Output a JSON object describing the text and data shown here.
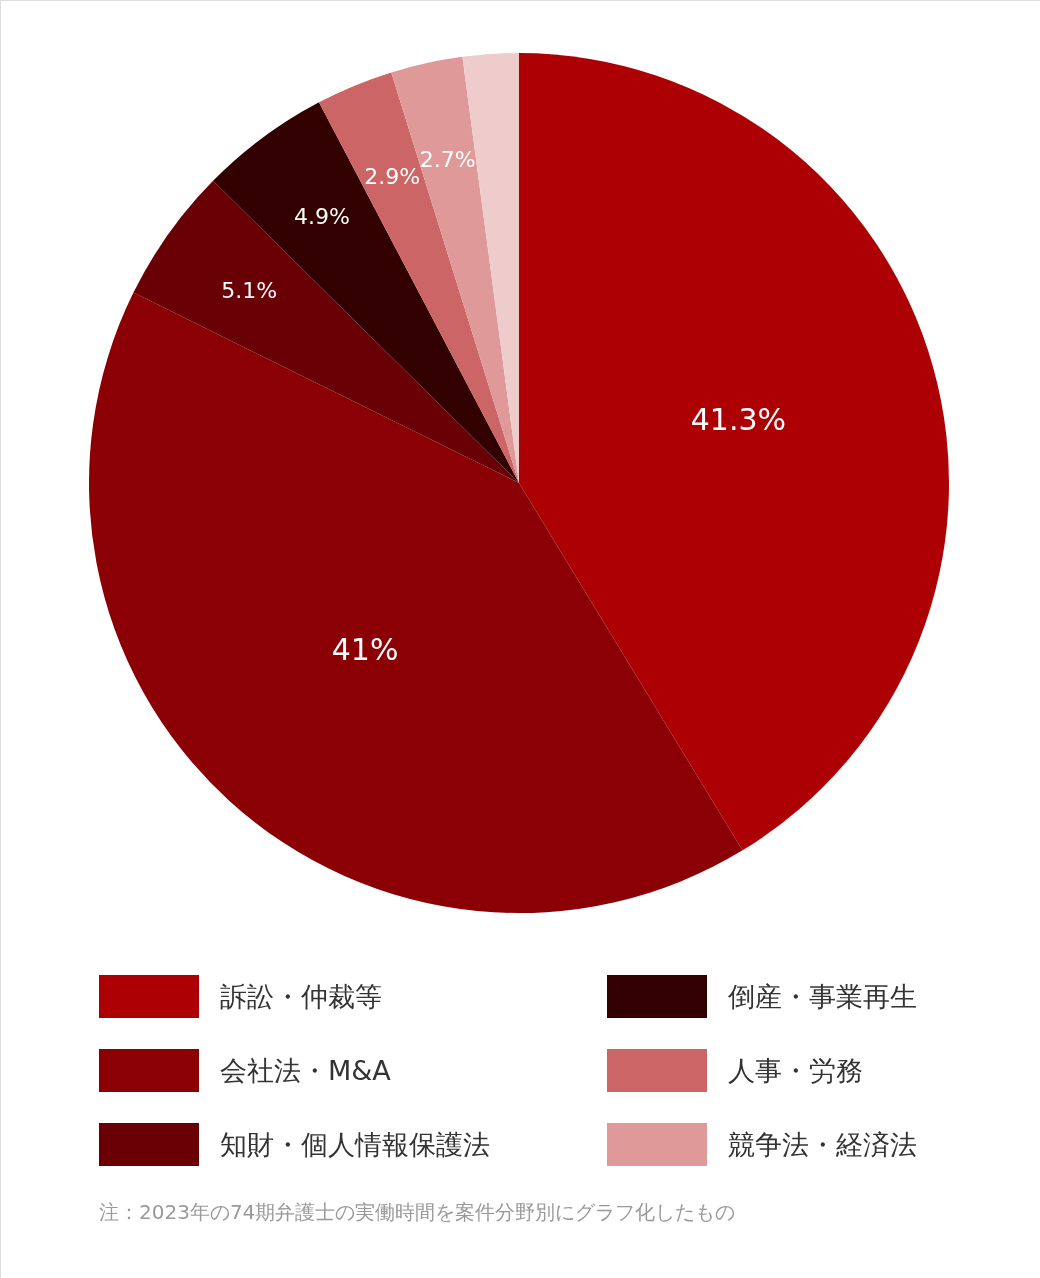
{
  "chart_data": {
    "type": "pie",
    "categories": [
      "訴訟・仲裁等",
      "会社法・M&A",
      "知財・個人情報保護法",
      "倒産・事業再生",
      "人事・労務",
      "競争法・経済法",
      null
    ],
    "values": [
      41.3,
      41,
      5.1,
      4.9,
      2.9,
      2.7,
      2.1
    ],
    "colors": [
      "#ad0005",
      "#8b0005",
      "#690005",
      "#330000",
      "#cc6666",
      "#df9999",
      "#efcccc"
    ],
    "value_labels": [
      "41.3%",
      "41%",
      "5.1%",
      "4.9%",
      "2.9%",
      "2.7%",
      null
    ],
    "legend": "bottom",
    "annotations": [
      "注：2023年の74期弁護士の実働時間を案件分野別にグラフ化したもの"
    ]
  }
}
